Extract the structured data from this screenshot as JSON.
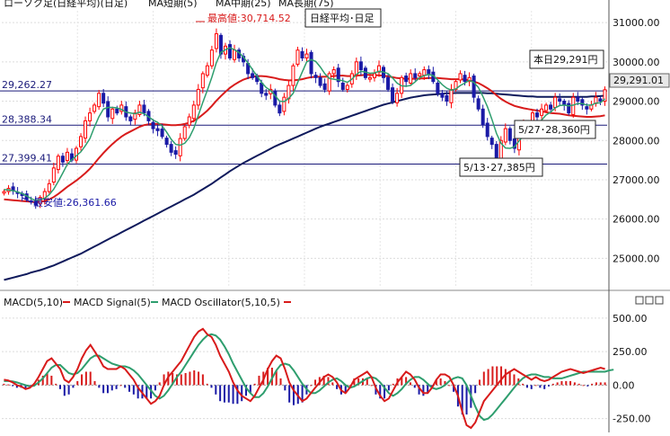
{
  "header": {
    "title": "ローソク足(日経平均)(日足)",
    "ma_short": "MA短期(5)",
    "ma_mid": "MA中期(25)",
    "ma_long": "MA長期(75)",
    "sub_legend": {
      "macd": "MACD(5,10)",
      "signal": "MACD Signal(5)",
      "osc": "MACD Oscillator(5,10,5)"
    }
  },
  "annotations": {
    "max": "最高値:30,714.52",
    "min": "最安値:26,361.66",
    "title_box": "日経平均･日足",
    "today": "本日29,291円",
    "may27": "5/27･28,360円",
    "may13": "5/13･27,385円",
    "last_price": "29,291.01"
  },
  "chart_data": [
    {
      "type": "candlestick",
      "title": "日経平均･日足",
      "ylim": [
        24300,
        31300
      ],
      "y_ticks": [
        25000,
        26000,
        27000,
        28000,
        29000,
        30000,
        31000
      ],
      "y_tick_labels": [
        "25000.00",
        "26000.00",
        "27000.00",
        "28000.00",
        "29000.00",
        "30000.00",
        "31000.00"
      ],
      "grid": true,
      "legend": "top-left",
      "colors": {
        "up": "#ff0000",
        "down": "#1a1aa6",
        "ma5": "#2e9e6e",
        "ma25": "#d81b1b",
        "ma75": "#0f1a5c"
      },
      "horizontal_lines": [
        {
          "value": 29262.27,
          "label": "29,262.27"
        },
        {
          "value": 28388.34,
          "label": "28,388.34"
        },
        {
          "value": 27399.41,
          "label": "27,399.41"
        }
      ],
      "close": [
        26700,
        26780,
        26720,
        26650,
        26600,
        26500,
        26450,
        26361.66,
        26550,
        26700,
        26900,
        27300,
        27600,
        27450,
        27700,
        27500,
        27800,
        28100,
        28500,
        28700,
        28900,
        29200,
        28950,
        28600,
        28800,
        28700,
        28900,
        28600,
        28500,
        28700,
        28900,
        28700,
        28500,
        28300,
        28250,
        28100,
        27900,
        27700,
        27650,
        28050,
        28350,
        28600,
        28900,
        29300,
        29700,
        29900,
        30300,
        30714.52,
        30200,
        30400,
        30100,
        30300,
        30100,
        30000,
        29700,
        29600,
        29500,
        29200,
        29150,
        29300,
        28900,
        28700,
        29100,
        29400,
        29900,
        30300,
        30100,
        30200,
        29700,
        29600,
        29400,
        29300,
        29700,
        29800,
        29500,
        29300,
        29400,
        29700,
        30000,
        29800,
        29600,
        29600,
        29700,
        29900,
        29600,
        29300,
        29000,
        29200,
        29600,
        29500,
        29700,
        29600,
        29700,
        29800,
        29700,
        29500,
        29200,
        29100,
        29000,
        29300,
        29500,
        29700,
        29500,
        29600,
        29100,
        28800,
        28400,
        28100,
        27900,
        27385,
        28000,
        28300,
        28000,
        27800,
        28100,
        28400,
        28360,
        28700,
        28600,
        28800,
        28900,
        28800,
        29100,
        29000,
        28900,
        28700,
        29100,
        29000,
        28900,
        28800,
        28900,
        29100,
        29000,
        29291.01
      ],
      "ma5": [
        26750,
        26740,
        26720,
        26690,
        26650,
        26590,
        26520,
        26470,
        26490,
        26530,
        26620,
        26760,
        26960,
        27170,
        27390,
        27510,
        27610,
        27710,
        27870,
        28050,
        28340,
        28600,
        28800,
        28840,
        28840,
        28830,
        28790,
        28720,
        28700,
        28680,
        28720,
        28680,
        28600,
        28520,
        28460,
        28370,
        28210,
        28030,
        27900,
        27880,
        27930,
        28070,
        28310,
        28640,
        28970,
        29280,
        29610,
        29980,
        30240,
        30310,
        30360,
        30310,
        30240,
        30120,
        29970,
        29800,
        29640,
        29480,
        29350,
        29270,
        29140,
        29000,
        28990,
        29070,
        29200,
        29480,
        29740,
        30000,
        30060,
        30010,
        29870,
        29700,
        29580,
        29560,
        29540,
        29520,
        29480,
        29560,
        29680,
        29760,
        29740,
        29710,
        29720,
        29760,
        29740,
        29700,
        29590,
        29460,
        29390,
        29380,
        29400,
        29490,
        29600,
        29650,
        29680,
        29650,
        29540,
        29420,
        29330,
        29280,
        29310,
        29400,
        29460,
        29530,
        29480,
        29350,
        29120,
        28860,
        28540,
        28180,
        27930,
        27810,
        27800,
        27840,
        27990,
        28120,
        28220,
        28320,
        28410,
        28520,
        28650,
        28720,
        28830,
        28890,
        28900,
        28880,
        28900,
        28940,
        28940,
        28900,
        28900,
        28950,
        28960,
        29060
      ],
      "ma25": [
        26500,
        26490,
        26480,
        26470,
        26460,
        26450,
        26440,
        26430,
        26440,
        26460,
        26500,
        26560,
        26640,
        26730,
        26820,
        26900,
        26980,
        27070,
        27170,
        27280,
        27410,
        27550,
        27680,
        27800,
        27910,
        28010,
        28100,
        28170,
        28230,
        28290,
        28350,
        28390,
        28410,
        28420,
        28420,
        28410,
        28400,
        28390,
        28390,
        28400,
        28420,
        28450,
        28500,
        28570,
        28660,
        28760,
        28880,
        29010,
        29130,
        29240,
        29340,
        29420,
        29490,
        29550,
        29590,
        29620,
        29640,
        29640,
        29630,
        29610,
        29590,
        29560,
        29540,
        29530,
        29530,
        29540,
        29560,
        29590,
        29610,
        29620,
        29620,
        29620,
        29630,
        29640,
        29650,
        29650,
        29640,
        29640,
        29650,
        29660,
        29670,
        29670,
        29660,
        29660,
        29650,
        29630,
        29610,
        29590,
        29580,
        29570,
        29570,
        29570,
        29580,
        29580,
        29590,
        29590,
        29590,
        29580,
        29570,
        29560,
        29560,
        29560,
        29550,
        29530,
        29500,
        29460,
        29400,
        29330,
        29250,
        29150,
        29060,
        28990,
        28930,
        28880,
        28850,
        28820,
        28800,
        28780,
        28760,
        28740,
        28720,
        28700,
        28690,
        28680,
        28660,
        28640,
        28630,
        28620,
        28610,
        28600,
        28600,
        28610,
        28620,
        28640
      ],
      "ma75": [
        24450,
        24480,
        24510,
        24540,
        24570,
        24600,
        24640,
        24670,
        24700,
        24740,
        24780,
        24820,
        24870,
        24920,
        24970,
        25020,
        25070,
        25120,
        25180,
        25240,
        25300,
        25360,
        25420,
        25480,
        25540,
        25600,
        25660,
        25720,
        25780,
        25840,
        25900,
        25960,
        26020,
        26080,
        26140,
        26200,
        26260,
        26320,
        26380,
        26440,
        26500,
        26560,
        26620,
        26690,
        26760,
        26830,
        26900,
        26980,
        27060,
        27140,
        27220,
        27290,
        27360,
        27430,
        27490,
        27550,
        27610,
        27670,
        27730,
        27790,
        27850,
        27900,
        27950,
        28000,
        28050,
        28100,
        28150,
        28200,
        28250,
        28300,
        28350,
        28390,
        28430,
        28470,
        28510,
        28550,
        28590,
        28630,
        28670,
        28710,
        28750,
        28790,
        28830,
        28870,
        28910,
        28940,
        28970,
        29000,
        29030,
        29060,
        29090,
        29110,
        29130,
        29150,
        29160,
        29170,
        29180,
        29190,
        29200,
        29200,
        29210,
        29210,
        29210,
        29210,
        29210,
        29210,
        29210,
        29200,
        29200,
        29190,
        29180,
        29170,
        29160,
        29150,
        29140,
        29130,
        29120,
        29120,
        29110,
        29110,
        29110,
        29110,
        29110,
        29110,
        29110,
        29110,
        29110,
        29110,
        29110,
        29110,
        29120,
        29120,
        29130,
        29140
      ]
    },
    {
      "type": "line",
      "title": "MACD",
      "ylim": [
        -320,
        560
      ],
      "y_ticks": [
        -250,
        0,
        250,
        500
      ],
      "y_tick_labels": [
        "-250.00",
        "0.00",
        "250.00",
        "500.00"
      ],
      "grid": true,
      "legend": "top-left",
      "colors": {
        "macd": "#d81b1b",
        "signal": "#2e9e6e",
        "osc_up": "#d81b1b",
        "osc_down": "#1a1aa6"
      },
      "series": [
        {
          "name": "MACD(5,10)",
          "values": [
            40,
            35,
            20,
            0,
            -10,
            -30,
            -20,
            10,
            60,
            120,
            180,
            200,
            160,
            120,
            40,
            20,
            60,
            120,
            200,
            260,
            300,
            250,
            200,
            140,
            120,
            120,
            120,
            140,
            120,
            80,
            40,
            -20,
            -60,
            -100,
            -140,
            -120,
            -80,
            0,
            60,
            100,
            140,
            180,
            240,
            300,
            360,
            400,
            420,
            380,
            360,
            300,
            220,
            160,
            100,
            20,
            -40,
            -80,
            -100,
            -120,
            -80,
            -20,
            40,
            120,
            180,
            220,
            200,
            120,
            20,
            -40,
            -80,
            -120,
            -100,
            -60,
            -20,
            20,
            60,
            80,
            60,
            20,
            -40,
            -60,
            -20,
            40,
            60,
            80,
            100,
            60,
            -20,
            -80,
            -120,
            -100,
            -40,
            20,
            60,
            100,
            80,
            40,
            -20,
            -60,
            -60,
            -20,
            40,
            80,
            80,
            60,
            0,
            -80,
            -200,
            -300,
            -320,
            -280,
            -200,
            -120,
            -80,
            -40,
            0,
            40,
            80,
            100,
            120,
            100,
            80,
            60,
            40,
            60,
            40,
            30,
            40,
            60,
            80,
            100,
            110,
            120,
            110,
            100,
            90,
            100,
            110,
            120,
            130,
            120
          ]
        },
        {
          "name": "MACD Signal(5)",
          "values": [
            30,
            30,
            28,
            20,
            10,
            0,
            -10,
            -5,
            20,
            50,
            90,
            130,
            150,
            150,
            120,
            90,
            80,
            90,
            120,
            160,
            200,
            220,
            220,
            200,
            180,
            160,
            150,
            140,
            140,
            130,
            110,
            80,
            40,
            0,
            -40,
            -80,
            -100,
            -80,
            -40,
            10,
            60,
            100,
            150,
            200,
            250,
            300,
            340,
            370,
            380,
            370,
            340,
            290,
            230,
            160,
            100,
            40,
            -20,
            -60,
            -90,
            -90,
            -60,
            -10,
            50,
            110,
            150,
            160,
            150,
            110,
            60,
            10,
            -30,
            -60,
            -60,
            -40,
            -10,
            20,
            40,
            50,
            30,
            0,
            -20,
            -10,
            10,
            30,
            50,
            60,
            50,
            20,
            -20,
            -60,
            -80,
            -60,
            -30,
            10,
            40,
            60,
            60,
            40,
            10,
            -20,
            -30,
            -20,
            0,
            30,
            50,
            60,
            50,
            0,
            -80,
            -160,
            -230,
            -260,
            -250,
            -220,
            -180,
            -140,
            -100,
            -60,
            -20,
            20,
            50,
            70,
            80,
            80,
            70,
            60,
            60,
            50,
            50,
            50,
            60,
            70,
            80,
            90,
            100,
            100,
            100,
            100,
            100,
            100,
            110,
            115
          ]
        },
        {
          "name": "MACD Oscillator(5,10,5)",
          "values": [
            10,
            5,
            -8,
            -20,
            -20,
            -30,
            -10,
            15,
            40,
            70,
            90,
            70,
            10,
            -30,
            -80,
            -70,
            -20,
            30,
            80,
            100,
            100,
            30,
            -20,
            -60,
            -60,
            -40,
            -30,
            0,
            -20,
            -50,
            -70,
            -100,
            -100,
            -100,
            -100,
            -40,
            20,
            80,
            100,
            90,
            80,
            80,
            90,
            100,
            110,
            100,
            80,
            10,
            -20,
            -70,
            -120,
            -130,
            -130,
            -140,
            -140,
            -120,
            -80,
            -60,
            10,
            70,
            100,
            130,
            130,
            110,
            50,
            -40,
            -130,
            -150,
            -140,
            -130,
            -70,
            0,
            40,
            60,
            70,
            60,
            20,
            -30,
            -70,
            -60,
            0,
            50,
            50,
            50,
            50,
            0,
            -70,
            -100,
            -100,
            -40,
            10,
            50,
            60,
            60,
            20,
            -20,
            -70,
            -80,
            -60,
            -20,
            40,
            50,
            30,
            0,
            -50,
            -160,
            -220,
            -220,
            -170,
            -60,
            40,
            100,
            120,
            140,
            140,
            140,
            120,
            100,
            80,
            50,
            10,
            -20,
            -30,
            0,
            -20,
            -30,
            -10,
            10,
            20,
            30,
            30,
            30,
            20,
            10,
            0,
            -10,
            10,
            20,
            20,
            20
          ]
        }
      ]
    }
  ]
}
